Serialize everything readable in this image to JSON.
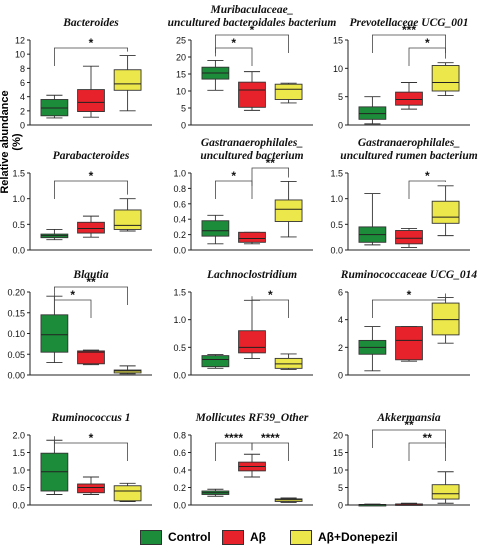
{
  "y_axis_title": "Relative abundance (%)",
  "legend": [
    {
      "label": "Control",
      "color": "#1d8c3a"
    },
    {
      "label": "Aβ",
      "color": "#e8222a"
    },
    {
      "label": "Aβ+Donepezil",
      "color": "#ece74a"
    }
  ],
  "chart_data": [
    {
      "type": "box",
      "title": [
        "Bacteroides"
      ],
      "ylim": [
        0,
        12
      ],
      "yticks": [
        "0",
        "2",
        "4",
        "6",
        "8",
        "10",
        "12"
      ],
      "groups": [
        {
          "min": 1.0,
          "q1": 1.3,
          "median": 2.4,
          "q3": 3.6,
          "max": 4.2
        },
        {
          "min": 1.1,
          "q1": 1.9,
          "median": 3.2,
          "q3": 5.0,
          "max": 8.3
        },
        {
          "min": 2.0,
          "q1": 4.9,
          "median": 5.8,
          "q3": 7.8,
          "max": 9.8
        }
      ],
      "sig": [
        {
          "from": 0,
          "to": 2,
          "level": 0,
          "label": "*"
        }
      ]
    },
    {
      "type": "box",
      "title": [
        "Muribaculaceae_",
        "uncultured bacteroidales bacterium"
      ],
      "ylim": [
        0,
        25
      ],
      "yticks": [
        "0",
        "5",
        "10",
        "15",
        "20",
        "25"
      ],
      "groups": [
        {
          "min": 10.2,
          "q1": 13.5,
          "median": 15.3,
          "q3": 17.0,
          "max": 19.0
        },
        {
          "min": 4.3,
          "q1": 5.2,
          "median": 10.3,
          "q3": 12.6,
          "max": 15.7
        },
        {
          "min": 6.5,
          "q1": 7.5,
          "median": 10.5,
          "q3": 12.0,
          "max": 12.3
        }
      ],
      "sig": [
        {
          "from": 0,
          "to": 1,
          "level": 0,
          "label": "*"
        },
        {
          "from": 0,
          "to": 2,
          "level": 1,
          "label": "*"
        }
      ]
    },
    {
      "type": "box",
      "title": [
        "Prevotellaceae UCG_001"
      ],
      "ylim": [
        0,
        15
      ],
      "yticks": [
        "0",
        "5",
        "10",
        "15"
      ],
      "groups": [
        {
          "min": 0.2,
          "q1": 1.0,
          "median": 2.0,
          "q3": 3.2,
          "max": 5.0
        },
        {
          "min": 2.8,
          "q1": 3.5,
          "median": 4.5,
          "q3": 5.8,
          "max": 7.5
        },
        {
          "min": 5.2,
          "q1": 6.0,
          "median": 7.5,
          "q3": 10.5,
          "max": 11.0
        }
      ],
      "sig": [
        {
          "from": 1,
          "to": 2,
          "level": 0,
          "label": "*"
        },
        {
          "from": 0,
          "to": 2,
          "level": 1,
          "label": "***"
        }
      ]
    },
    {
      "type": "box",
      "title": [
        "Parabacteroides"
      ],
      "ylim": [
        0,
        1.5
      ],
      "yticks": [
        "0.0",
        "0.5",
        "1.0",
        "1.5"
      ],
      "groups": [
        {
          "min": 0.2,
          "q1": 0.24,
          "median": 0.28,
          "q3": 0.31,
          "max": 0.4
        },
        {
          "min": 0.25,
          "q1": 0.33,
          "median": 0.42,
          "q3": 0.54,
          "max": 0.66
        },
        {
          "min": 0.37,
          "q1": 0.4,
          "median": 0.48,
          "q3": 0.78,
          "max": 1.0
        }
      ],
      "sig": [
        {
          "from": 0,
          "to": 2,
          "level": 0,
          "label": "*"
        }
      ]
    },
    {
      "type": "box",
      "title": [
        "Gastranaerophilales_",
        "uncultured bacterium"
      ],
      "ylim": [
        0,
        1.0
      ],
      "yticks": [
        "0.0",
        "0.2",
        "0.4",
        "0.6",
        "0.8",
        "1.0"
      ],
      "groups": [
        {
          "min": 0.08,
          "q1": 0.18,
          "median": 0.25,
          "q3": 0.38,
          "max": 0.45
        },
        {
          "min": 0.08,
          "q1": 0.1,
          "median": 0.15,
          "q3": 0.23,
          "max": 0.23
        },
        {
          "min": 0.17,
          "q1": 0.37,
          "median": 0.53,
          "q3": 0.65,
          "max": 0.89
        }
      ],
      "sig": [
        {
          "from": 0,
          "to": 1,
          "level": 0,
          "label": "*"
        },
        {
          "from": 1,
          "to": 2,
          "level": 1,
          "label": "**"
        }
      ]
    },
    {
      "type": "box",
      "title": [
        "Gastranaerophilales_",
        "uncultured rumen bacterium"
      ],
      "ylim": [
        0,
        1.5
      ],
      "yticks": [
        "0.0",
        "0.5",
        "1.0",
        "1.5"
      ],
      "groups": [
        {
          "min": 0.1,
          "q1": 0.15,
          "median": 0.3,
          "q3": 0.45,
          "max": 1.1
        },
        {
          "min": 0.05,
          "q1": 0.12,
          "median": 0.23,
          "q3": 0.38,
          "max": 0.42
        },
        {
          "min": 0.28,
          "q1": 0.52,
          "median": 0.64,
          "q3": 0.95,
          "max": 1.25
        }
      ],
      "sig": [
        {
          "from": 1,
          "to": 2,
          "level": 0,
          "label": "*"
        }
      ]
    },
    {
      "type": "box",
      "title": [
        "Blautia"
      ],
      "ylim": [
        0,
        0.2
      ],
      "yticks": [
        "0.00",
        "0.05",
        "0.10",
        "0.15",
        "0.20"
      ],
      "groups": [
        {
          "min": 0.03,
          "q1": 0.055,
          "median": 0.097,
          "q3": 0.145,
          "max": 0.19
        },
        {
          "min": 0.025,
          "q1": 0.027,
          "median": 0.055,
          "q3": 0.058,
          "max": 0.06
        },
        {
          "min": 0.003,
          "q1": 0.005,
          "median": 0.01,
          "q3": 0.012,
          "max": 0.022
        }
      ],
      "sig": [
        {
          "from": 0,
          "to": 1,
          "level": 0,
          "label": "*"
        },
        {
          "from": 0,
          "to": 2,
          "level": 1,
          "label": "**"
        }
      ]
    },
    {
      "type": "box",
      "title": [
        "Lachnoclostridium"
      ],
      "ylim": [
        0,
        1.5
      ],
      "yticks": [
        "0.0",
        "0.5",
        "1.0",
        "1.5"
      ],
      "groups": [
        {
          "min": 0.12,
          "q1": 0.15,
          "median": 0.28,
          "q3": 0.35,
          "max": 0.37
        },
        {
          "min": 0.3,
          "q1": 0.4,
          "median": 0.5,
          "q3": 0.8,
          "max": 1.35
        },
        {
          "min": 0.1,
          "q1": 0.12,
          "median": 0.2,
          "q3": 0.3,
          "max": 0.38
        }
      ],
      "sig": [
        {
          "from": 1,
          "to": 2,
          "level": 0,
          "label": "*"
        }
      ]
    },
    {
      "type": "box",
      "title": [
        "Ruminococcaceae UCG_014"
      ],
      "ylim": [
        0,
        6
      ],
      "yticks": [
        "0",
        "2",
        "4",
        "6"
      ],
      "groups": [
        {
          "min": 0.3,
          "q1": 1.5,
          "median": 2.0,
          "q3": 2.5,
          "max": 3.5
        },
        {
          "min": 1.0,
          "q1": 1.1,
          "median": 2.5,
          "q3": 3.5,
          "max": 3.5
        },
        {
          "min": 2.3,
          "q1": 2.9,
          "median": 4.0,
          "q3": 5.2,
          "max": 5.6
        }
      ],
      "sig": [
        {
          "from": 0,
          "to": 2,
          "level": 0,
          "label": "*"
        }
      ]
    },
    {
      "type": "box",
      "title": [
        "Ruminococcus 1"
      ],
      "ylim": [
        0,
        2.0
      ],
      "yticks": [
        "0.0",
        "0.5",
        "1.0",
        "1.5",
        "2.0"
      ],
      "groups": [
        {
          "min": 0.3,
          "q1": 0.4,
          "median": 0.95,
          "q3": 1.48,
          "max": 1.85
        },
        {
          "min": 0.3,
          "q1": 0.35,
          "median": 0.5,
          "q3": 0.6,
          "max": 0.8
        },
        {
          "min": 0.1,
          "q1": 0.12,
          "median": 0.4,
          "q3": 0.55,
          "max": 0.62
        }
      ],
      "sig": [
        {
          "from": 0,
          "to": 2,
          "level": 0,
          "label": "*"
        }
      ]
    },
    {
      "type": "box",
      "title": [
        "Mollicutes RF39_Other"
      ],
      "ylim": [
        0,
        0.8
      ],
      "yticks": [
        "0.0",
        "0.2",
        "0.4",
        "0.6",
        "0.8"
      ],
      "groups": [
        {
          "min": 0.1,
          "q1": 0.12,
          "median": 0.14,
          "q3": 0.16,
          "max": 0.18
        },
        {
          "min": 0.32,
          "q1": 0.39,
          "median": 0.44,
          "q3": 0.49,
          "max": 0.58
        },
        {
          "min": 0.03,
          "q1": 0.04,
          "median": 0.06,
          "q3": 0.07,
          "max": 0.08
        }
      ],
      "sig": [
        {
          "from": 0,
          "to": 1,
          "level": 0,
          "label": "****"
        },
        {
          "from": 1,
          "to": 2,
          "level": 0,
          "label": "****"
        }
      ]
    },
    {
      "type": "box",
      "title": [
        "Akkermansia"
      ],
      "ylim": [
        0,
        20
      ],
      "yticks": [
        "0",
        "5",
        "10",
        "15",
        "20"
      ],
      "groups": [
        {
          "min": 0.0,
          "q1": 0.05,
          "median": 0.1,
          "q3": 0.15,
          "max": 0.25
        },
        {
          "min": 0.05,
          "q1": 0.1,
          "median": 0.2,
          "q3": 0.3,
          "max": 0.5
        },
        {
          "min": 0.5,
          "q1": 1.7,
          "median": 3.2,
          "q3": 5.8,
          "max": 9.5
        }
      ],
      "sig": [
        {
          "from": 1,
          "to": 2,
          "level": 0,
          "label": "**"
        },
        {
          "from": 0,
          "to": 2,
          "level": 1,
          "label": "**"
        }
      ]
    }
  ]
}
